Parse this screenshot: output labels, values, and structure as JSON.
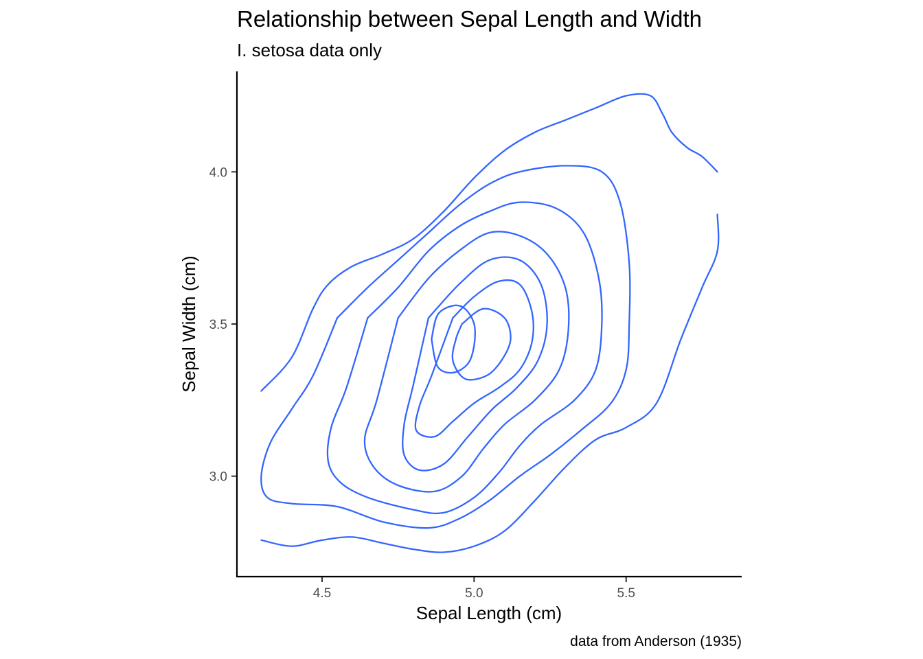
{
  "chart_data": {
    "type": "density_2d_contour",
    "title": "Relationship between Sepal Length and Width",
    "subtitle": "I. setosa data only",
    "xlabel": "Sepal Length (cm)",
    "ylabel": "Sepal Width (cm)",
    "caption": "data from Anderson (1935)",
    "xlim": [
      4.22,
      5.88
    ],
    "ylim": [
      2.67,
      4.33
    ],
    "x_ticks": [
      4.5,
      5.0,
      5.5
    ],
    "x_tick_labels": [
      "4.5",
      "5.0",
      "5.5"
    ],
    "y_ticks": [
      3.0,
      3.5,
      4.0
    ],
    "y_tick_labels": [
      "3.0",
      "3.5",
      "4.0"
    ],
    "grid": false,
    "line_color": "#3366FF",
    "contours": [
      {
        "level": 1,
        "points": [
          [
            4.3,
            3.28
          ],
          [
            4.4,
            3.39
          ],
          [
            4.47,
            3.55
          ],
          [
            4.52,
            3.63
          ],
          [
            4.6,
            3.69
          ],
          [
            4.7,
            3.73
          ],
          [
            4.8,
            3.78
          ],
          [
            4.9,
            3.87
          ],
          [
            5.0,
            3.98
          ],
          [
            5.1,
            4.07
          ],
          [
            5.2,
            4.13
          ],
          [
            5.3,
            4.17
          ],
          [
            5.4,
            4.21
          ],
          [
            5.5,
            4.25
          ],
          [
            5.58,
            4.25
          ],
          [
            5.62,
            4.19
          ],
          [
            5.65,
            4.13
          ],
          [
            5.7,
            4.08
          ],
          [
            5.75,
            4.05
          ],
          [
            5.8,
            4.0
          ]
        ]
      },
      {
        "level": 1,
        "points": [
          [
            4.3,
            2.79
          ],
          [
            4.4,
            2.77
          ],
          [
            4.5,
            2.79
          ],
          [
            4.6,
            2.8
          ],
          [
            4.7,
            2.78
          ],
          [
            4.8,
            2.76
          ],
          [
            4.9,
            2.75
          ],
          [
            5.0,
            2.77
          ],
          [
            5.1,
            2.82
          ],
          [
            5.2,
            2.92
          ],
          [
            5.3,
            3.03
          ],
          [
            5.4,
            3.12
          ],
          [
            5.5,
            3.16
          ],
          [
            5.6,
            3.24
          ],
          [
            5.68,
            3.45
          ],
          [
            5.75,
            3.62
          ],
          [
            5.8,
            3.74
          ],
          [
            5.8,
            3.86
          ]
        ]
      },
      {
        "level": 2,
        "points": [
          [
            4.55,
            3.52
          ],
          [
            4.65,
            3.62
          ],
          [
            4.75,
            3.71
          ],
          [
            4.85,
            3.8
          ],
          [
            4.95,
            3.89
          ],
          [
            5.05,
            3.96
          ],
          [
            5.15,
            4.0
          ],
          [
            5.3,
            4.02
          ],
          [
            5.42,
            4.0
          ],
          [
            5.48,
            3.9
          ],
          [
            5.51,
            3.7
          ],
          [
            5.51,
            3.5
          ],
          [
            5.5,
            3.35
          ],
          [
            5.45,
            3.24
          ],
          [
            5.35,
            3.15
          ],
          [
            5.25,
            3.07
          ],
          [
            5.15,
            3.0
          ],
          [
            5.05,
            2.92
          ],
          [
            4.95,
            2.86
          ],
          [
            4.85,
            2.83
          ],
          [
            4.7,
            2.85
          ],
          [
            4.55,
            2.9
          ],
          [
            4.4,
            2.91
          ],
          [
            4.32,
            2.93
          ],
          [
            4.3,
            3.0
          ],
          [
            4.33,
            3.11
          ],
          [
            4.4,
            3.22
          ],
          [
            4.47,
            3.33
          ],
          [
            4.55,
            3.52
          ]
        ]
      },
      {
        "level": 3,
        "points": [
          [
            4.65,
            3.52
          ],
          [
            4.75,
            3.62
          ],
          [
            4.85,
            3.74
          ],
          [
            4.95,
            3.82
          ],
          [
            5.05,
            3.87
          ],
          [
            5.15,
            3.9
          ],
          [
            5.27,
            3.88
          ],
          [
            5.36,
            3.8
          ],
          [
            5.41,
            3.65
          ],
          [
            5.42,
            3.5
          ],
          [
            5.4,
            3.35
          ],
          [
            5.33,
            3.25
          ],
          [
            5.22,
            3.17
          ],
          [
            5.15,
            3.1
          ],
          [
            5.08,
            3.01
          ],
          [
            5.0,
            2.93
          ],
          [
            4.9,
            2.88
          ],
          [
            4.8,
            2.89
          ],
          [
            4.65,
            2.93
          ],
          [
            4.56,
            2.98
          ],
          [
            4.52,
            3.05
          ],
          [
            4.53,
            3.16
          ],
          [
            4.58,
            3.29
          ],
          [
            4.65,
            3.52
          ]
        ]
      },
      {
        "level": 4,
        "points": [
          [
            4.75,
            3.52
          ],
          [
            4.85,
            3.65
          ],
          [
            4.95,
            3.74
          ],
          [
            5.05,
            3.8
          ],
          [
            5.15,
            3.79
          ],
          [
            5.24,
            3.73
          ],
          [
            5.3,
            3.62
          ],
          [
            5.31,
            3.48
          ],
          [
            5.28,
            3.35
          ],
          [
            5.2,
            3.25
          ],
          [
            5.1,
            3.17
          ],
          [
            5.03,
            3.09
          ],
          [
            4.96,
            3.0
          ],
          [
            4.87,
            2.95
          ],
          [
            4.75,
            2.97
          ],
          [
            4.67,
            3.03
          ],
          [
            4.64,
            3.12
          ],
          [
            4.68,
            3.25
          ],
          [
            4.75,
            3.52
          ]
        ]
      },
      {
        "level": 5,
        "points": [
          [
            4.85,
            3.52
          ],
          [
            4.95,
            3.63
          ],
          [
            5.05,
            3.71
          ],
          [
            5.15,
            3.71
          ],
          [
            5.22,
            3.63
          ],
          [
            5.24,
            3.5
          ],
          [
            5.21,
            3.38
          ],
          [
            5.14,
            3.29
          ],
          [
            5.06,
            3.22
          ],
          [
            4.98,
            3.13
          ],
          [
            4.9,
            3.04
          ],
          [
            4.82,
            3.02
          ],
          [
            4.77,
            3.07
          ],
          [
            4.77,
            3.17
          ],
          [
            4.8,
            3.3
          ],
          [
            4.85,
            3.52
          ]
        ]
      },
      {
        "level": 6,
        "points": [
          [
            4.93,
            3.52
          ],
          [
            5.0,
            3.59
          ],
          [
            5.08,
            3.64
          ],
          [
            5.15,
            3.63
          ],
          [
            5.19,
            3.54
          ],
          [
            5.19,
            3.44
          ],
          [
            5.15,
            3.35
          ],
          [
            5.08,
            3.29
          ],
          [
            5.0,
            3.24
          ],
          [
            4.93,
            3.18
          ],
          [
            4.87,
            3.13
          ],
          [
            4.81,
            3.15
          ],
          [
            4.82,
            3.23
          ],
          [
            4.86,
            3.33
          ],
          [
            4.93,
            3.52
          ]
        ]
      },
      {
        "level": 7,
        "points": [
          [
            4.96,
            3.5
          ],
          [
            5.03,
            3.55
          ],
          [
            5.1,
            3.52
          ],
          [
            5.12,
            3.45
          ],
          [
            5.09,
            3.38
          ],
          [
            5.04,
            3.33
          ],
          [
            4.97,
            3.32
          ],
          [
            4.93,
            3.38
          ],
          [
            4.94,
            3.45
          ],
          [
            4.96,
            3.5
          ]
        ]
      },
      {
        "level": 7,
        "points": [
          [
            4.86,
            3.45
          ],
          [
            4.88,
            3.53
          ],
          [
            4.93,
            3.56
          ],
          [
            4.97,
            3.55
          ],
          [
            5.0,
            3.5
          ],
          [
            5.0,
            3.43
          ],
          [
            4.98,
            3.37
          ],
          [
            4.93,
            3.34
          ],
          [
            4.88,
            3.36
          ],
          [
            4.86,
            3.45
          ]
        ]
      }
    ]
  }
}
